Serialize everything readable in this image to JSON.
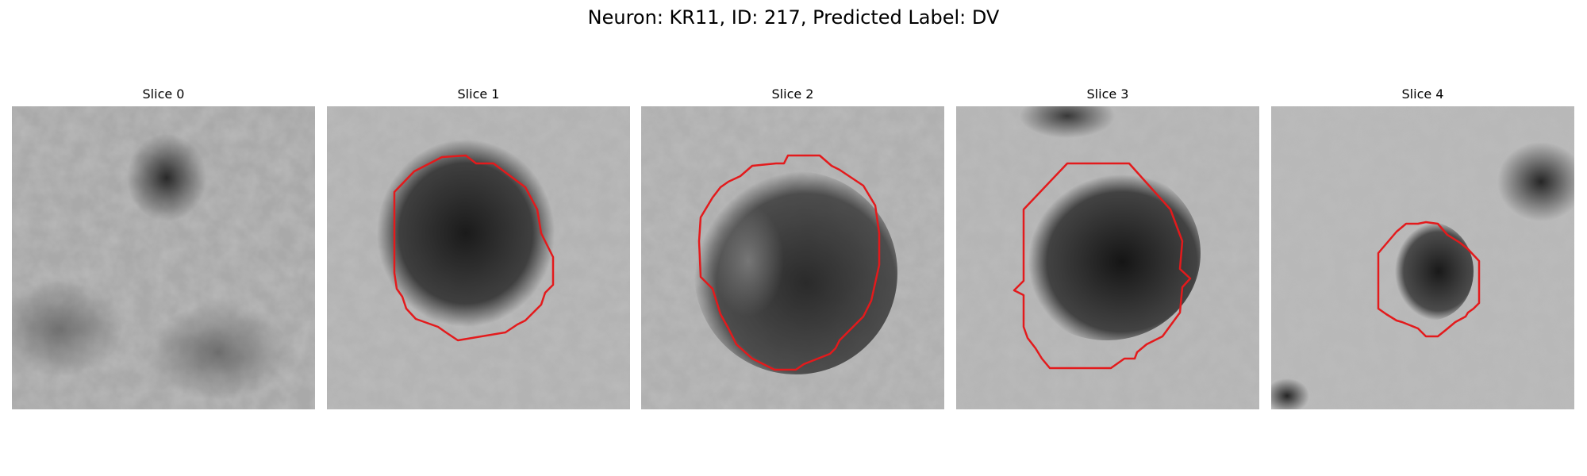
{
  "title": "Neuron: KR11, ID: 217, Predicted Label: DV",
  "colors": {
    "contour": "#e31a1c",
    "background": "#ffffff",
    "colormap": "gray"
  },
  "panels": [
    {
      "label": "Slice 0",
      "contour": false
    },
    {
      "label": "Slice 1",
      "contour": true
    },
    {
      "label": "Slice 2",
      "contour": true
    },
    {
      "label": "Slice 3",
      "contour": true
    },
    {
      "label": "Slice 4",
      "contour": true
    }
  ]
}
